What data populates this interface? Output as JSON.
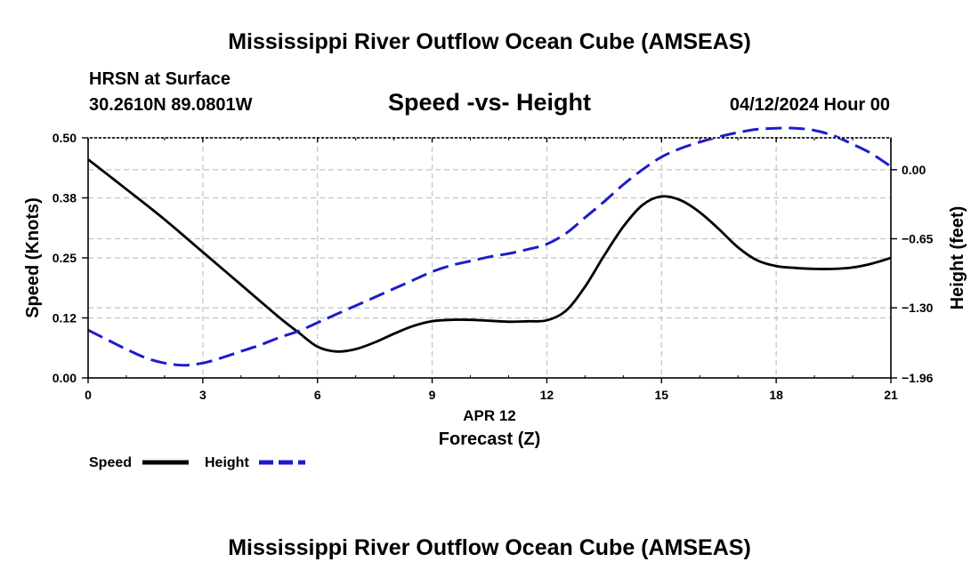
{
  "chart_data": {
    "type": "line",
    "title": "Mississippi River Outflow Ocean Cube (AMSEAS)",
    "subtitle": "Speed -vs- Height",
    "station": "HRSN at Surface",
    "location": "30.2610N  89.0801W",
    "date_label": "04/12/2024 Hour 00",
    "footer_title": "Mississippi River Outflow Ocean Cube (AMSEAS)",
    "xlabel": "Forecast (Z)",
    "xlabel_date": "APR 12",
    "ylabel": "Speed (Knots)",
    "y2label": "Height (feet)",
    "xlim": [
      0,
      21
    ],
    "ylim": [
      0,
      0.5
    ],
    "y2lim": [
      -1.96,
      0.3
    ],
    "x_ticks": [
      0,
      3,
      6,
      9,
      12,
      15,
      18,
      21
    ],
    "x_tick_labels": [
      "0",
      "3",
      "6",
      "9",
      "12",
      "15",
      "18",
      "21"
    ],
    "y_ticks": [
      0,
      0.125,
      0.25,
      0.375,
      0.5
    ],
    "y_tick_labels": [
      "0.00",
      "0.12",
      "0.25",
      "0.38",
      "0.50"
    ],
    "y2_ticks": [
      -1.96,
      -1.3,
      -0.65,
      0.0
    ],
    "y2_tick_labels": [
      "−1.96",
      "−1.30",
      "−0.65",
      "0.00"
    ],
    "grid": true,
    "legend": "bottom-left",
    "series": [
      {
        "name": "Speed",
        "axis": "left",
        "color": "#000000",
        "style": "solid",
        "x": [
          0,
          1,
          2,
          3,
          4,
          5,
          5.5,
          6,
          6.5,
          7,
          7.5,
          8,
          8.5,
          9,
          9.5,
          10,
          10.5,
          11,
          11.5,
          12,
          12.5,
          13,
          13.5,
          14,
          14.5,
          15,
          15.5,
          16,
          16.5,
          17,
          17.5,
          18,
          18.5,
          19,
          19.5,
          20,
          20.5,
          21
        ],
        "values": [
          0.455,
          0.393,
          0.33,
          0.262,
          0.194,
          0.126,
          0.095,
          0.065,
          0.055,
          0.06,
          0.074,
          0.092,
          0.108,
          0.118,
          0.121,
          0.121,
          0.119,
          0.117,
          0.118,
          0.12,
          0.14,
          0.19,
          0.255,
          0.315,
          0.36,
          0.378,
          0.37,
          0.345,
          0.31,
          0.272,
          0.245,
          0.233,
          0.229,
          0.227,
          0.227,
          0.23,
          0.238,
          0.25
        ]
      },
      {
        "name": "Height",
        "axis": "right",
        "color": "#1c1ccc",
        "style": "dashed",
        "x": [
          0,
          0.5,
          1,
          1.5,
          2,
          2.5,
          3,
          3.5,
          4,
          4.5,
          5,
          5.5,
          6,
          6.5,
          7,
          7.5,
          8,
          8.5,
          9,
          9.5,
          10,
          10.5,
          11,
          11.5,
          12,
          12.5,
          13,
          13.5,
          14,
          14.5,
          15,
          15.5,
          16,
          16.5,
          17,
          17.5,
          18,
          18.5,
          19,
          19.5,
          20,
          20.5,
          21
        ],
        "values": [
          -1.51,
          -1.6,
          -1.69,
          -1.77,
          -1.82,
          -1.84,
          -1.82,
          -1.77,
          -1.71,
          -1.65,
          -1.58,
          -1.52,
          -1.44,
          -1.36,
          -1.28,
          -1.2,
          -1.12,
          -1.04,
          -0.96,
          -0.9,
          -0.86,
          -0.82,
          -0.79,
          -0.75,
          -0.7,
          -0.6,
          -0.45,
          -0.3,
          -0.14,
          0.0,
          0.12,
          0.2,
          0.26,
          0.31,
          0.35,
          0.38,
          0.39,
          0.39,
          0.37,
          0.32,
          0.24,
          0.15,
          0.03
        ]
      }
    ]
  }
}
